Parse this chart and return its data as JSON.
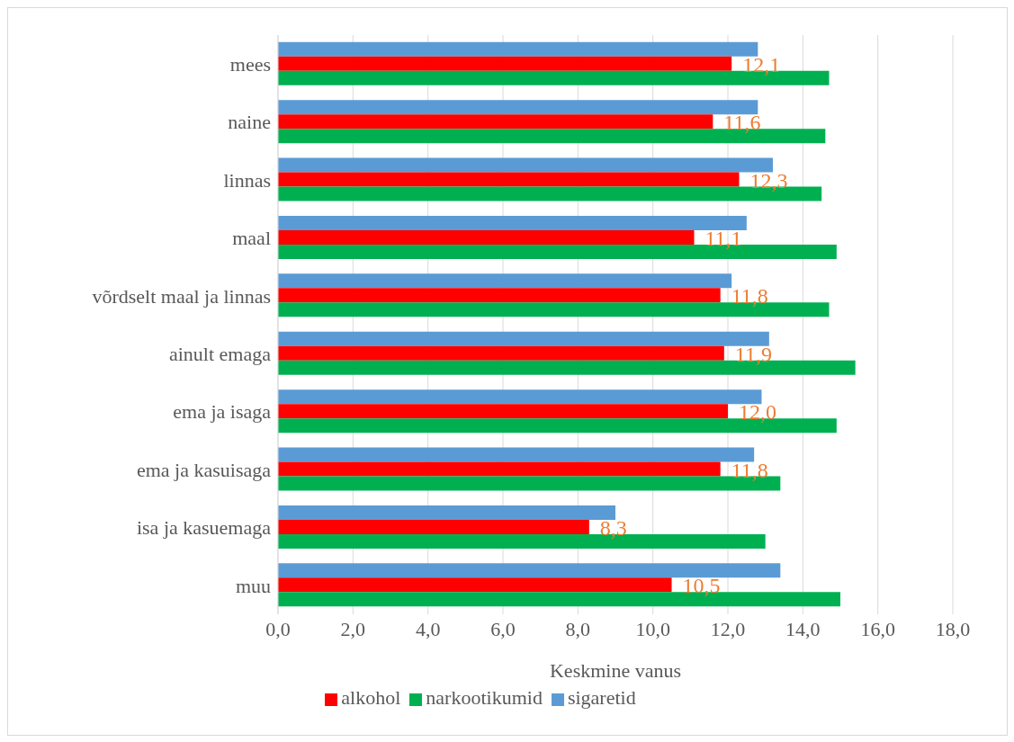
{
  "chart_data": {
    "type": "bar",
    "orientation": "horizontal",
    "xlabel": "Keskmine vanus",
    "categories": [
      "mees",
      "naine",
      "linnas",
      "maal",
      "võrdselt maal ja linnas",
      "ainult emaga",
      "ema ja isaga",
      "ema ja kasuisaga",
      "isa ja kasuemaga",
      "muu"
    ],
    "series": [
      {
        "name": "sigaretid",
        "color": "#5b9bd5",
        "values": [
          12.8,
          12.8,
          13.2,
          12.5,
          12.1,
          13.1,
          12.9,
          12.7,
          9.0,
          13.4
        ]
      },
      {
        "name": "alkohol",
        "color": "#ff0000",
        "values": [
          12.1,
          11.6,
          12.3,
          11.1,
          11.8,
          11.9,
          12.0,
          11.8,
          8.3,
          10.5
        ],
        "value_labels": [
          "12,1",
          "11,6",
          "12,3",
          "11,1",
          "11,8",
          "11,9",
          "12,0",
          "11,8",
          "8,3",
          "10,5"
        ]
      },
      {
        "name": "narkootikumid",
        "color": "#00b050",
        "values": [
          14.7,
          14.6,
          14.5,
          14.9,
          14.7,
          15.4,
          14.9,
          13.4,
          13.0,
          15.0
        ]
      }
    ],
    "xlim": [
      0,
      18
    ],
    "xticks": [
      {
        "value": 0,
        "label": "0,0"
      },
      {
        "value": 2,
        "label": "2,0"
      },
      {
        "value": 4,
        "label": "4,0"
      },
      {
        "value": 6,
        "label": "6,0"
      },
      {
        "value": 8,
        "label": "8,0"
      },
      {
        "value": 10,
        "label": "10,0"
      },
      {
        "value": 12,
        "label": "12,0"
      },
      {
        "value": 14,
        "label": "14,0"
      },
      {
        "value": 16,
        "label": "16,0"
      },
      {
        "value": 18,
        "label": "18,0"
      }
    ],
    "grid": "x",
    "legend": "bottom"
  }
}
